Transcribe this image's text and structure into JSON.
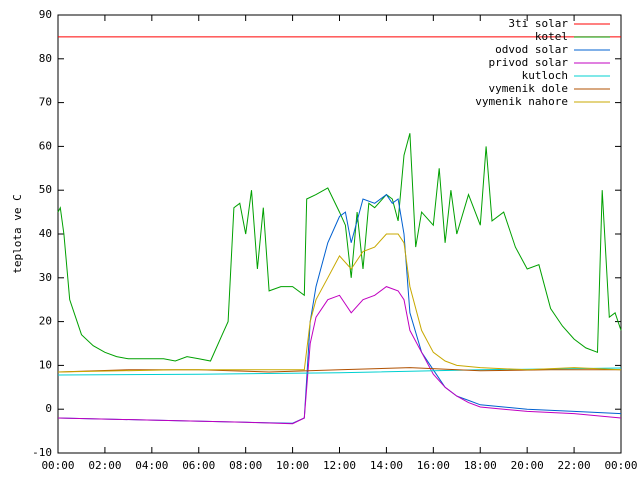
{
  "chart_data": {
    "type": "line",
    "y_label": "teplota ve C",
    "xlim": [
      0,
      24
    ],
    "xticks": [
      {
        "value": 0,
        "label": "00:00"
      },
      {
        "value": 2,
        "label": "02:00"
      },
      {
        "value": 4,
        "label": "04:00"
      },
      {
        "value": 6,
        "label": "06:00"
      },
      {
        "value": 8,
        "label": "08:00"
      },
      {
        "value": 10,
        "label": "10:00"
      },
      {
        "value": 12,
        "label": "12:00"
      },
      {
        "value": 14,
        "label": "14:00"
      },
      {
        "value": 16,
        "label": "16:00"
      },
      {
        "value": 18,
        "label": "18:00"
      },
      {
        "value": 20,
        "label": "20:00"
      },
      {
        "value": 22,
        "label": "22:00"
      },
      {
        "value": 24,
        "label": "00:00"
      }
    ],
    "ylim": [
      -10,
      90
    ],
    "yticks": [
      -10,
      0,
      10,
      20,
      30,
      40,
      50,
      60,
      70,
      80,
      90
    ],
    "legend": "top-right",
    "series": [
      {
        "name": "3ti solar",
        "color": "#ff0000",
        "x": [
          0,
          24
        ],
        "values": [
          85,
          85
        ]
      },
      {
        "name": "kotel",
        "color": "#00a000",
        "x": [
          0,
          0.1,
          0.25,
          0.5,
          1,
          1.5,
          2,
          2.5,
          3,
          3.5,
          4,
          4.5,
          5,
          5.5,
          6,
          6.5,
          7,
          7.25,
          7.5,
          7.75,
          8,
          8.25,
          8.5,
          8.75,
          9,
          9.5,
          10,
          10.5,
          10.6,
          11,
          11.5,
          12,
          12.25,
          12.5,
          12.75,
          13,
          13.25,
          13.5,
          14,
          14.25,
          14.5,
          14.75,
          15,
          15.25,
          15.5,
          16,
          16.25,
          16.5,
          16.75,
          17,
          17.5,
          18,
          18.25,
          18.5,
          19,
          19.5,
          20,
          20.5,
          21,
          21.5,
          22,
          22.5,
          23,
          23.2,
          23.5,
          23.75,
          24
        ],
        "values": [
          45,
          46,
          40,
          25,
          17,
          14.5,
          13,
          12,
          11.5,
          11.5,
          11.5,
          11.5,
          11,
          12,
          11.5,
          11,
          17,
          20,
          46,
          47,
          40,
          50,
          32,
          46,
          27,
          28,
          28,
          26,
          48,
          49,
          50.5,
          45,
          42,
          30,
          45,
          32,
          47,
          46,
          49,
          48,
          43,
          58,
          63,
          37,
          45,
          42,
          55,
          38,
          50,
          40,
          49,
          42,
          60,
          43,
          45,
          37,
          32,
          33,
          23,
          19,
          16,
          14,
          13,
          50,
          21,
          22,
          18
        ]
      },
      {
        "name": "odvod solar",
        "color": "#0060d0",
        "x": [
          0,
          4,
          8,
          10,
          10.5,
          10.75,
          11,
          11.5,
          12,
          12.25,
          12.5,
          13,
          13.5,
          14,
          14.25,
          14.5,
          14.75,
          15,
          15.5,
          16,
          16.5,
          17,
          17.5,
          18,
          19,
          20,
          22,
          24
        ],
        "values": [
          -2,
          -2.5,
          -3,
          -3.2,
          -2,
          20,
          28,
          38,
          44,
          45,
          38,
          48,
          47,
          49,
          47,
          48,
          40,
          22,
          13,
          9,
          5,
          3,
          2,
          1,
          0.5,
          0,
          -0.5,
          -1
        ]
      },
      {
        "name": "privod solar",
        "color": "#c000c0",
        "x": [
          0,
          4,
          8,
          10,
          10.5,
          10.75,
          11,
          11.5,
          12,
          12.25,
          12.5,
          13,
          13.5,
          14,
          14.5,
          14.75,
          15,
          15.5,
          16,
          16.5,
          17,
          17.5,
          18,
          19,
          20,
          22,
          24
        ],
        "values": [
          -2,
          -2.5,
          -3,
          -3.3,
          -2,
          15,
          21,
          25,
          26,
          24,
          22,
          25,
          26,
          28,
          27,
          25,
          18,
          13,
          8,
          5,
          3,
          1.5,
          0.5,
          0,
          -0.5,
          -1,
          -2
        ]
      },
      {
        "name": "kutloch",
        "color": "#00d0d0",
        "x": [
          0,
          6,
          12,
          18,
          24
        ],
        "values": [
          7.8,
          8,
          8.3,
          9,
          9.4
        ]
      },
      {
        "name": "vymenik dole",
        "color": "#b05000",
        "x": [
          0,
          3,
          6,
          9,
          12,
          15,
          18,
          21,
          24
        ],
        "values": [
          8.5,
          9,
          9,
          8.5,
          9,
          9.5,
          8.8,
          9,
          9
        ]
      },
      {
        "name": "vymenik nahore",
        "color": "#c8a800",
        "x": [
          0,
          5,
          10.5,
          10.75,
          11,
          11.5,
          12,
          12.5,
          13,
          13.5,
          14,
          14.5,
          14.75,
          15,
          15.5,
          16,
          16.5,
          17,
          18,
          20,
          22,
          24
        ],
        "values": [
          8.5,
          9,
          9,
          20,
          25,
          30,
          35,
          32,
          36,
          37,
          40,
          40,
          38,
          28,
          18,
          13,
          11,
          10,
          9.5,
          9,
          9.5,
          9
        ]
      }
    ]
  }
}
